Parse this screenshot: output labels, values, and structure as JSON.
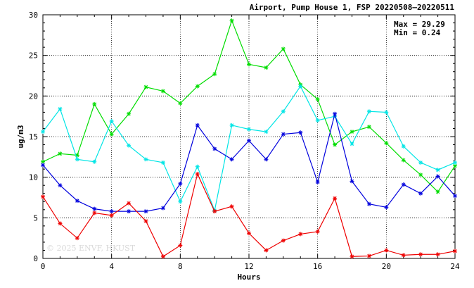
{
  "chart_data": {
    "type": "line",
    "title": "Airport, Pump House 1, FSP 20220508–20220511",
    "xlabel": "Hours",
    "ylabel": "ug/m3",
    "xlim": [
      0,
      24
    ],
    "ylim": [
      0,
      30
    ],
    "x_ticks": [
      "0",
      "4",
      "8",
      "12",
      "16",
      "20",
      "24"
    ],
    "y_ticks": [
      "0",
      "5",
      "10",
      "15",
      "20",
      "25",
      "30"
    ],
    "grid": true,
    "x": [
      0,
      1,
      2,
      3,
      4,
      5,
      6,
      7,
      8,
      9,
      10,
      11,
      12,
      13,
      14,
      15,
      16,
      17,
      18,
      19,
      20,
      21,
      22,
      23,
      24
    ],
    "series": [
      {
        "color": "#00dd00",
        "values": [
          11.9,
          12.9,
          12.7,
          19.0,
          15.3,
          17.8,
          21.1,
          20.6,
          19.1,
          21.2,
          22.7,
          29.29,
          23.9,
          23.5,
          25.8,
          21.4,
          19.6,
          14.0,
          15.6,
          16.2,
          14.2,
          12.1,
          10.3,
          8.2,
          11.4
        ]
      },
      {
        "color": "#00e5e5",
        "values": [
          15.6,
          18.4,
          12.2,
          11.9,
          16.9,
          13.9,
          12.2,
          11.8,
          7.0,
          11.3,
          5.9,
          16.4,
          15.9,
          15.6,
          18.1,
          21.2,
          17.0,
          17.5,
          14.1,
          18.1,
          18.0,
          13.8,
          11.8,
          10.9,
          11.8
        ]
      },
      {
        "color": "#0000dd",
        "values": [
          11.5,
          9.0,
          7.1,
          6.1,
          5.8,
          5.8,
          5.8,
          6.2,
          9.2,
          16.4,
          13.5,
          12.2,
          14.5,
          12.2,
          15.3,
          15.5,
          9.4,
          17.8,
          9.5,
          6.7,
          6.3,
          9.1,
          8.0,
          10.1,
          7.7
        ]
      },
      {
        "color": "#ee0000",
        "values": [
          7.6,
          4.3,
          2.5,
          5.6,
          5.3,
          6.8,
          4.6,
          0.24,
          1.6,
          10.4,
          5.8,
          6.4,
          3.1,
          1.0,
          2.2,
          3.0,
          3.3,
          7.4,
          0.24,
          0.3,
          1.0,
          0.4,
          0.5,
          0.5,
          0.9
        ]
      }
    ],
    "stats": {
      "max_line": "Max = 29.29",
      "min_line": "Min =  0.24"
    },
    "watermark": "© 2025  ENVF, HKUST"
  }
}
